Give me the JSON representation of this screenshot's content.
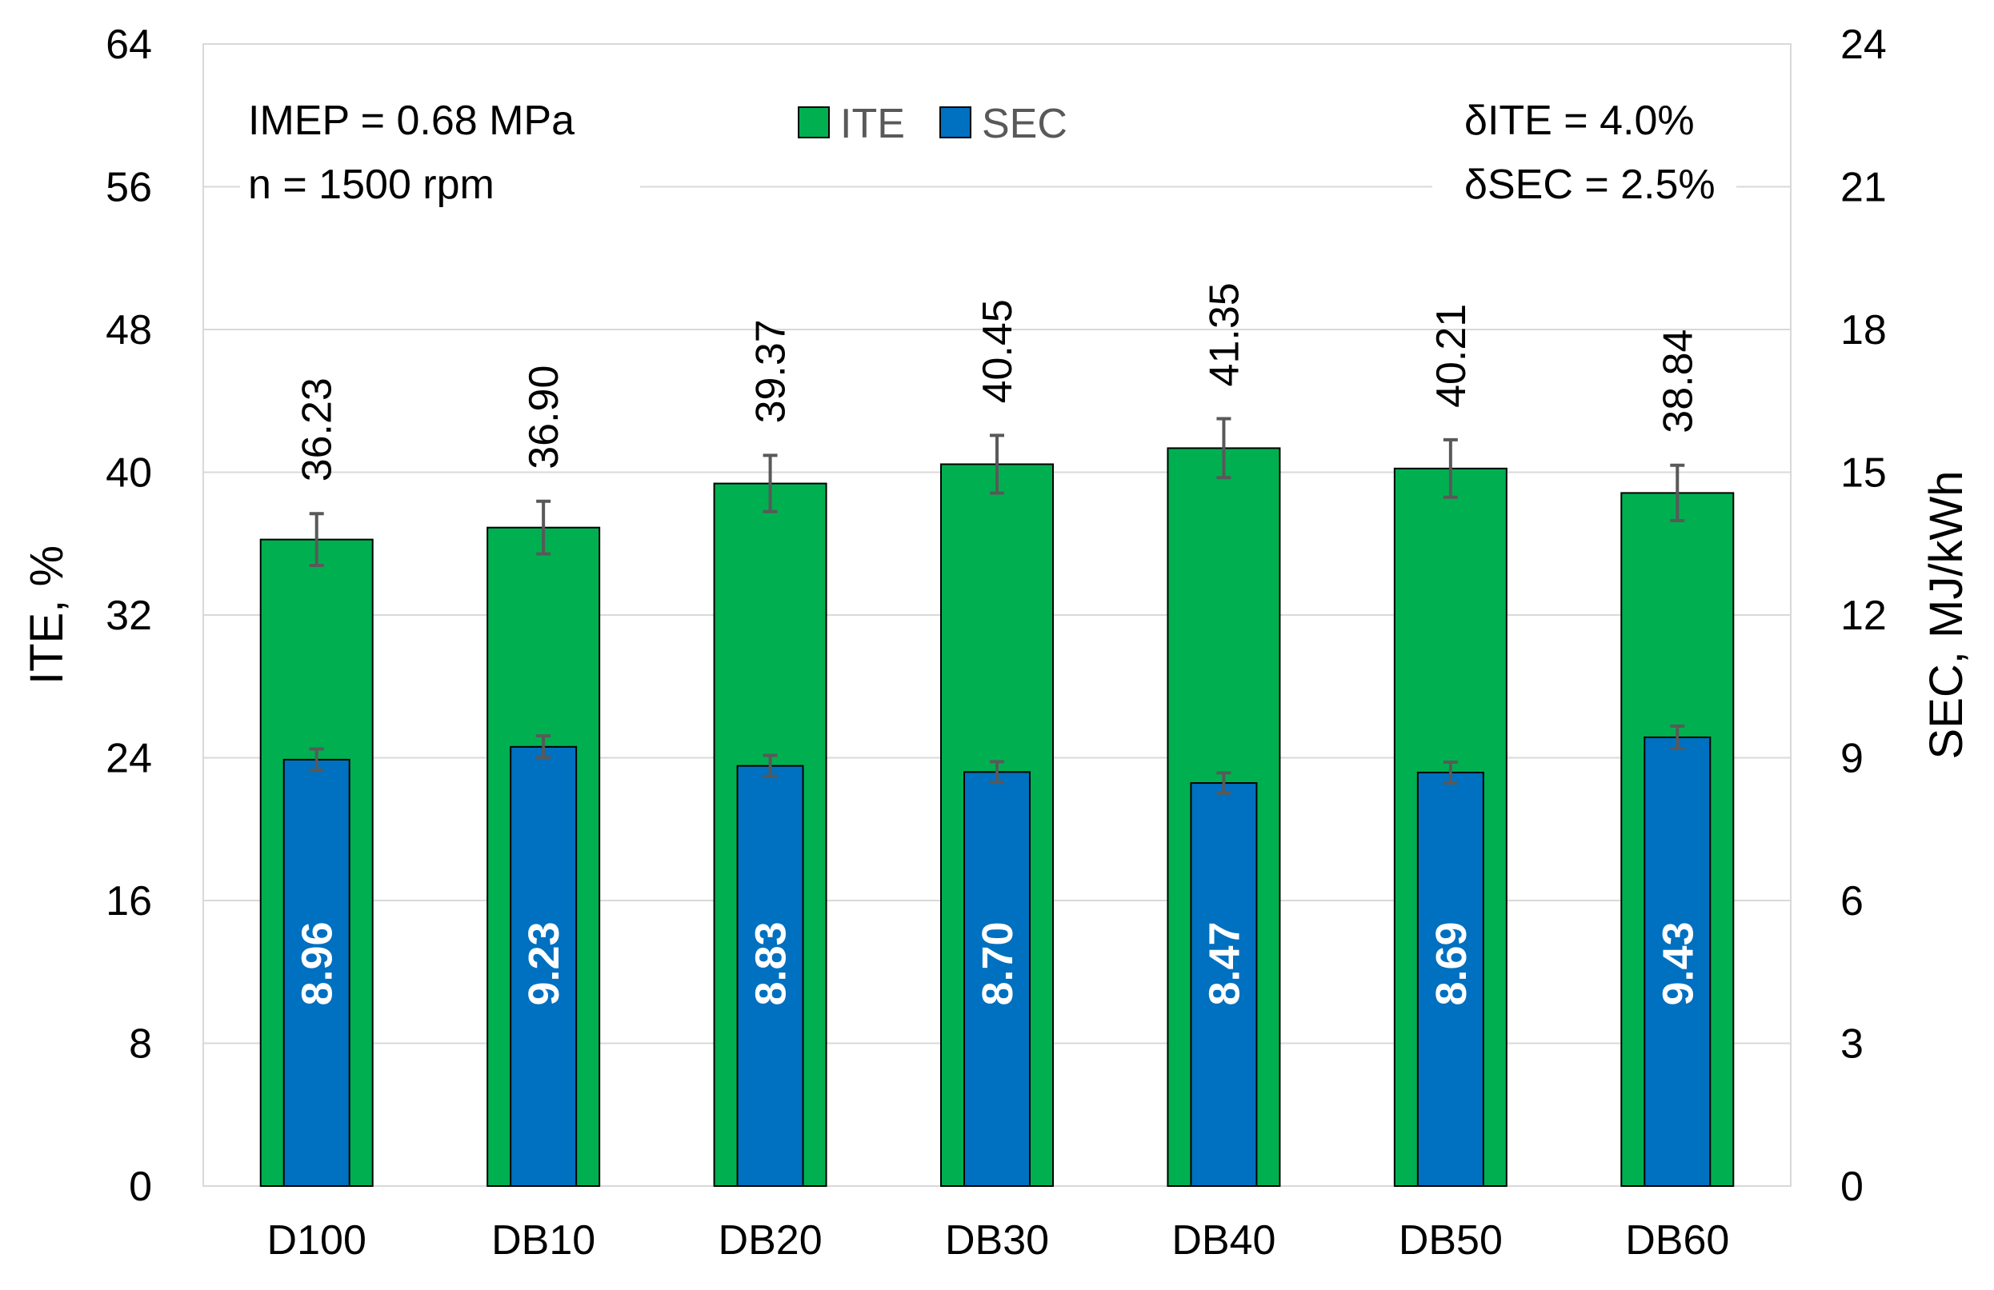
{
  "chart_data": {
    "type": "bar",
    "categories": [
      "D100",
      "DB10",
      "DB20",
      "DB30",
      "DB40",
      "DB50",
      "DB60"
    ],
    "series": [
      {
        "name": "ITE",
        "axis": "left",
        "color": "#00B050",
        "values": [
          36.23,
          36.9,
          39.37,
          40.45,
          41.35,
          40.21,
          38.84
        ],
        "labels": [
          "36.23",
          "36.90",
          "39.37",
          "40.45",
          "41.35",
          "40.21",
          "38.84"
        ],
        "error_pct": 4.0
      },
      {
        "name": "SEC",
        "axis": "right",
        "color": "#0070C0",
        "values": [
          8.96,
          9.23,
          8.83,
          8.7,
          8.47,
          8.69,
          9.43
        ],
        "labels": [
          "8.96",
          "9.23",
          "8.83",
          "8.70",
          "8.47",
          "8.69",
          "9.43"
        ],
        "error_pct": 2.5
      }
    ],
    "ylabel": "ITE, %",
    "y2label": "SEC, MJ/kWh",
    "ylim": [
      0,
      64
    ],
    "yticks": [
      "0",
      "8",
      "16",
      "24",
      "32",
      "40",
      "48",
      "56",
      "64"
    ],
    "y2lim": [
      0,
      24
    ],
    "y2ticks": [
      "0",
      "3",
      "6",
      "9",
      "12",
      "15",
      "18",
      "21",
      "24"
    ],
    "grid": true,
    "legend": {
      "placement": "top-center",
      "entries": [
        "ITE",
        "SEC"
      ]
    },
    "annotations": {
      "left": [
        "IMEP = 0.68 MPa",
        "n = 1500 rpm"
      ],
      "right": [
        "δITE = 4.0%",
        "δSEC = 2.5%"
      ]
    }
  }
}
